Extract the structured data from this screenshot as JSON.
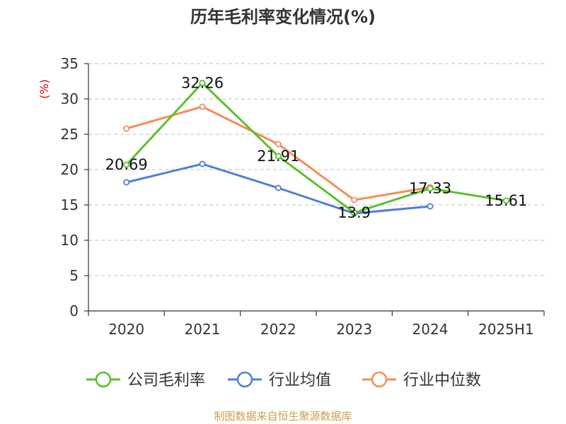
{
  "colors": {
    "axis": "#333333",
    "grid": "#cccccc",
    "ylabel": "#e00000",
    "source": "#c8a050"
  },
  "chart_data": {
    "type": "line",
    "title": "历年毛利率变化情况(%)",
    "ylabel": "(%)",
    "xlabel": "",
    "categories": [
      "2020",
      "2021",
      "2022",
      "2023",
      "2024",
      "2025H1"
    ],
    "ylim": [
      0,
      35
    ],
    "yticks": [
      0,
      5,
      10,
      15,
      20,
      25,
      30,
      35
    ],
    "grid": true,
    "legend_position": "bottom",
    "series": [
      {
        "name": "公司毛利率",
        "color": "#5cc02c",
        "values": [
          20.69,
          32.26,
          21.91,
          13.9,
          17.33,
          15.61
        ],
        "labels": [
          "20.69",
          "32.26",
          "21.91",
          "13.9",
          "17.33",
          "15.61"
        ]
      },
      {
        "name": "行业均值",
        "color": "#4f7fd6",
        "values": [
          18.2,
          20.8,
          17.4,
          13.8,
          14.8,
          null
        ]
      },
      {
        "name": "行业中位数",
        "color": "#f28e5b",
        "values": [
          25.8,
          28.9,
          23.6,
          15.7,
          17.5,
          null
        ]
      }
    ]
  },
  "source": "制图数据来自恒生聚源数据库"
}
